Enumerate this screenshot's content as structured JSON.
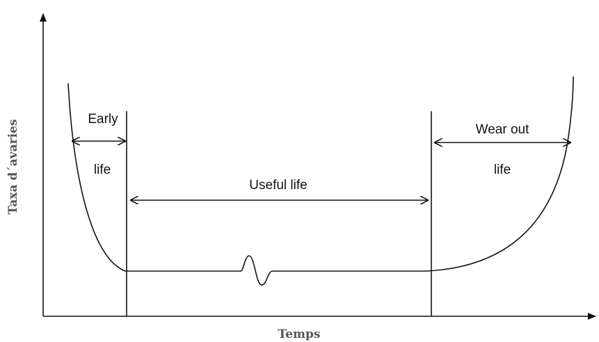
{
  "axes": {
    "y_label": "Taxa d´avaries",
    "x_label": "Temps"
  },
  "regions": [
    {
      "label": [
        "Early",
        "life"
      ]
    },
    {
      "label": [
        "Useful life"
      ]
    },
    {
      "label": [
        "Wear out",
        "life"
      ]
    }
  ]
}
